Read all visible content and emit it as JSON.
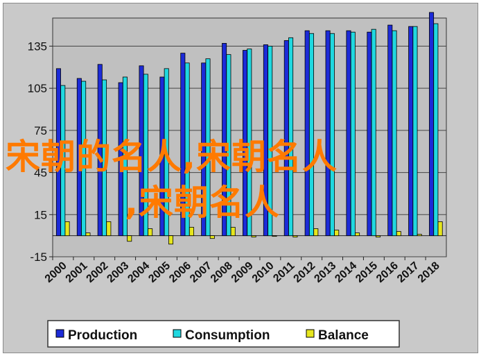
{
  "chart_data": {
    "type": "bar",
    "categories": [
      "2000",
      "2001",
      "2002",
      "2003",
      "2004",
      "2005",
      "2006",
      "2007",
      "2008",
      "2009",
      "2010",
      "2011",
      "2012",
      "2013",
      "2014",
      "2015",
      "2016",
      "2017",
      "2018"
    ],
    "series": [
      {
        "name": "Production",
        "color": "#1c2bd8",
        "values": [
          119,
          112,
          122,
          109,
          121,
          113,
          130,
          123,
          137,
          132,
          136,
          139,
          146,
          146,
          146,
          145,
          150,
          149,
          159
        ]
      },
      {
        "name": "Consumption",
        "color": "#20d8e0",
        "values": [
          107,
          110,
          111,
          113,
          115,
          119,
          123,
          126,
          129,
          133,
          135,
          141,
          144,
          144,
          145,
          147,
          146,
          149,
          151
        ]
      },
      {
        "name": "Balance",
        "color": "#e6e61e",
        "values": [
          10,
          2,
          10,
          -4,
          5,
          -6,
          6,
          -2,
          6,
          -1,
          0,
          -1,
          5,
          4,
          2,
          -1,
          3,
          1,
          10
        ]
      }
    ],
    "ylim": [
      -15,
      155
    ],
    "yticks": [
      -15,
      15,
      45,
      75,
      105,
      135
    ],
    "grid": true,
    "legend": "bottom",
    "xlabel": "",
    "ylabel": ""
  },
  "watermark": {
    "line1": "宋朝的名人,宋朝名人",
    "line2": ",宋朝名人"
  }
}
